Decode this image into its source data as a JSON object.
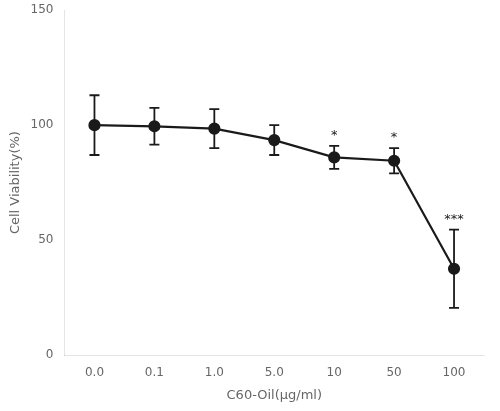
{
  "chart_data": {
    "type": "line",
    "categories": [
      "0.0",
      "0.1",
      "1.0",
      "5.0",
      "10",
      "50",
      "100"
    ],
    "values": [
      100.0,
      99.5,
      98.5,
      93.5,
      86.0,
      84.5,
      37.5
    ],
    "errors": [
      13.0,
      8.0,
      8.5,
      6.5,
      5.0,
      5.5,
      17.0
    ],
    "annotations": [
      {
        "x": "10",
        "text": "*"
      },
      {
        "x": "50",
        "text": "*"
      },
      {
        "x": "100",
        "text": "***"
      }
    ],
    "xlabel": "C60-Oil(μg/ml)",
    "ylabel": "Cell Viability(%)",
    "ylim": [
      0,
      150
    ],
    "yticks": [
      0,
      50,
      100,
      150
    ],
    "color": "#1a1a1a",
    "marker": "o",
    "line_style": "solid",
    "grid": false
  }
}
